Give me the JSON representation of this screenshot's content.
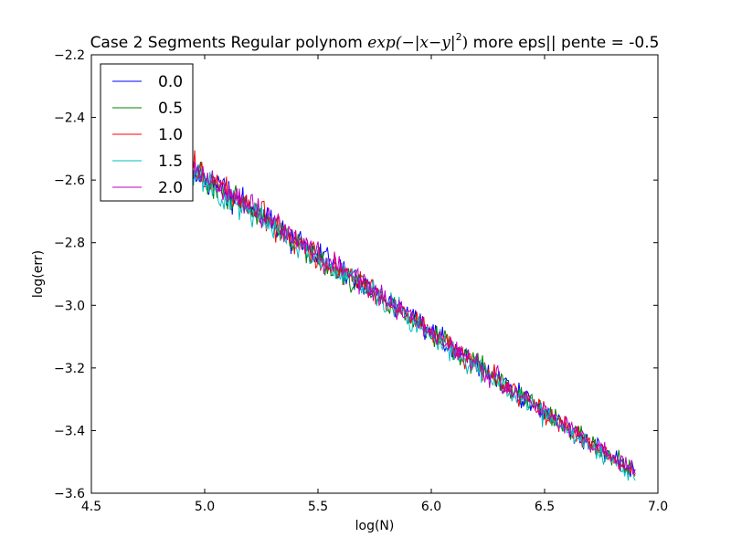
{
  "chart_data": {
    "type": "line",
    "title": {
      "prefix": "Case 2 Segments Regular polynom ",
      "math_func": "exp(−|x−y|",
      "math_exp": "2",
      "math_close": ")",
      "suffix": " more eps|| pente = -0.5"
    },
    "xlabel": "log(N)",
    "ylabel": "log(err)",
    "xlim": [
      4.5,
      7.0
    ],
    "ylim": [
      -3.6,
      -2.2
    ],
    "xticks": [
      4.5,
      5.0,
      5.5,
      6.0,
      6.5,
      7.0
    ],
    "yticks": [
      -3.6,
      -3.4,
      -3.2,
      -3.0,
      -2.8,
      -2.6,
      -2.4,
      -2.2
    ],
    "xtick_labels": [
      "4.5",
      "5.0",
      "5.5",
      "6.0",
      "6.5",
      "7.0"
    ],
    "ytick_labels": [
      "−3.6",
      "−3.4",
      "−3.2",
      "−3.0",
      "−2.8",
      "−2.6",
      "−2.4",
      "−2.2"
    ],
    "grid": false,
    "legend_position": "top-left",
    "noise_amplitude": 0.045,
    "series": [
      {
        "name": "0.0",
        "color": "#0000ff",
        "x": [
          4.93,
          5.2,
          5.5,
          5.8,
          6.1,
          6.4,
          6.7,
          6.9
        ],
        "y": [
          -2.56,
          -2.69,
          -2.84,
          -2.98,
          -3.14,
          -3.29,
          -3.44,
          -3.53
        ]
      },
      {
        "name": "0.5",
        "color": "#008000",
        "x": [
          4.93,
          5.2,
          5.5,
          5.8,
          6.1,
          6.4,
          6.7,
          6.9
        ],
        "y": [
          -2.57,
          -2.69,
          -2.85,
          -2.99,
          -3.14,
          -3.29,
          -3.44,
          -3.53
        ]
      },
      {
        "name": "1.0",
        "color": "#ff0000",
        "x": [
          4.93,
          5.2,
          5.5,
          5.8,
          6.1,
          6.4,
          6.7,
          6.9
        ],
        "y": [
          -2.55,
          -2.69,
          -2.84,
          -2.98,
          -3.14,
          -3.29,
          -3.44,
          -3.54
        ]
      },
      {
        "name": "1.5",
        "color": "#00bfbf",
        "x": [
          4.93,
          5.2,
          5.5,
          5.8,
          6.1,
          6.4,
          6.7,
          6.9
        ],
        "y": [
          -2.58,
          -2.7,
          -2.85,
          -2.99,
          -3.15,
          -3.3,
          -3.45,
          -3.54
        ]
      },
      {
        "name": "2.0",
        "color": "#bf00bf",
        "x": [
          4.93,
          5.2,
          5.5,
          5.8,
          6.1,
          6.4,
          6.7,
          6.9
        ],
        "y": [
          -2.56,
          -2.69,
          -2.84,
          -2.98,
          -3.14,
          -3.29,
          -3.44,
          -3.53
        ]
      }
    ]
  }
}
